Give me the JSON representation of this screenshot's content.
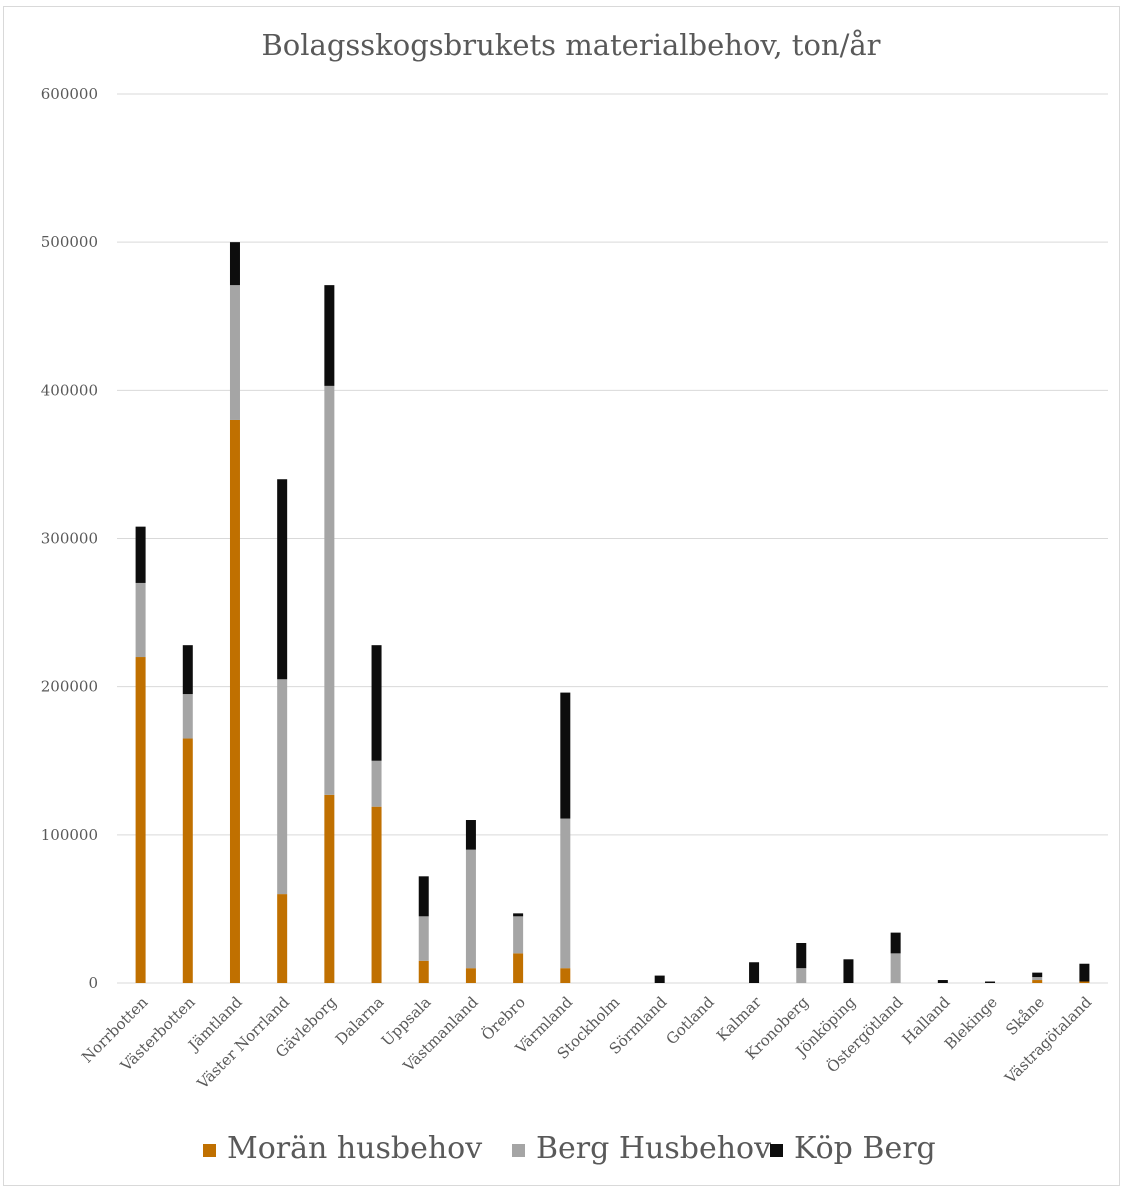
{
  "chart_data": {
    "type": "bar",
    "stacked": true,
    "title": "Bolagsskogsbrukets materialbehov, ton/år",
    "xlabel": "",
    "ylabel": "",
    "ylim": [
      0,
      600000
    ],
    "yticks": [
      "0",
      "100000",
      "200000",
      "300000",
      "400000",
      "500000",
      "600000"
    ],
    "grid": true,
    "legend_position": "bottom",
    "categories": [
      "Norrbotten",
      "Västerbotten",
      "Jämtland",
      "Väster Norrland",
      "Gävleborg",
      "Dalarna",
      "Uppsala",
      "Västmanland",
      "Örebro",
      "Värmland",
      "Stockholm",
      "Sörmland",
      "Gotland",
      "Kalmar",
      "Kronoberg",
      "Jönköping",
      "Östergötland",
      "Halland",
      "Blekinge",
      "Skåne",
      "Västragötaland"
    ],
    "series": [
      {
        "name": "Morän husbehov",
        "color": "#c07000",
        "values": [
          220000,
          165000,
          380000,
          60000,
          127000,
          119000,
          15000,
          10000,
          20000,
          10000,
          0,
          0,
          0,
          0,
          0,
          0,
          0,
          0,
          0,
          2000,
          1000
        ]
      },
      {
        "name": "Berg Husbehov",
        "color": "#a5a5a5",
        "values": [
          50000,
          30000,
          91000,
          145000,
          276000,
          31000,
          30000,
          80000,
          25000,
          101000,
          0,
          0,
          0,
          0,
          10000,
          0,
          20000,
          0,
          0,
          2000,
          0
        ]
      },
      {
        "name": "Köp Berg",
        "color": "#0d0d0d",
        "values": [
          38000,
          33000,
          29000,
          135000,
          68000,
          78000,
          27000,
          20000,
          2000,
          85000,
          0,
          5000,
          0,
          14000,
          17000,
          16000,
          14000,
          2000,
          1000,
          3000,
          12000
        ]
      }
    ]
  }
}
